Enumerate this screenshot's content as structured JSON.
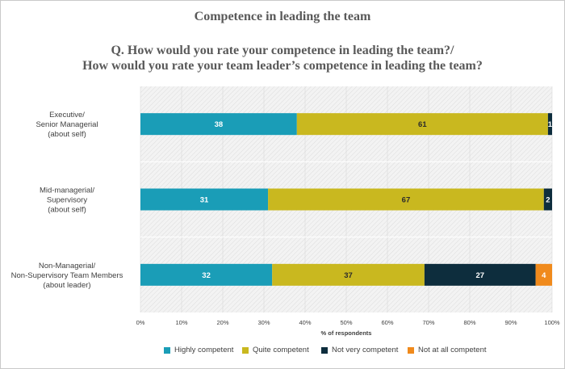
{
  "title": "Competence in leading the team",
  "question_line1": "Q. How would you rate your competence in leading the team?/",
  "question_line2": "How would you rate your team leader’s competence in leading the team?",
  "chart_data": {
    "type": "bar",
    "orientation": "horizontal",
    "stacked": true,
    "categories": [
      [
        "Executive/",
        "Senior Managerial",
        "(about self)"
      ],
      [
        "Mid-managerial/",
        "Supervisory",
        "(about self)"
      ],
      [
        "Non-Managerial/",
        "Non-Supervisory Team Members",
        "(about leader)"
      ]
    ],
    "series": [
      {
        "name": "Highly competent",
        "color": "#1a9db7",
        "label_color": "#ffffff",
        "values": [
          38,
          31,
          32
        ]
      },
      {
        "name": "Quite competent",
        "color": "#c9b81f",
        "label_color": "#2b2b2b",
        "values": [
          61,
          67,
          37
        ]
      },
      {
        "name": "Not very competent",
        "color": "#0d2d3d",
        "label_color": "#ffffff",
        "values": [
          1,
          2,
          27
        ]
      },
      {
        "name": "Not at all competent",
        "color": "#f08a1c",
        "label_color": "#ffffff",
        "values": [
          0,
          0,
          4
        ]
      }
    ],
    "xlabel": "% of respondents",
    "xlim": [
      0,
      100
    ],
    "xticks": [
      "0%",
      "10%",
      "20%",
      "30%",
      "40%",
      "50%",
      "60%",
      "70%",
      "80%",
      "90%",
      "100%"
    ],
    "legend_position": "bottom",
    "plot_background": "diagonal-hatch"
  }
}
